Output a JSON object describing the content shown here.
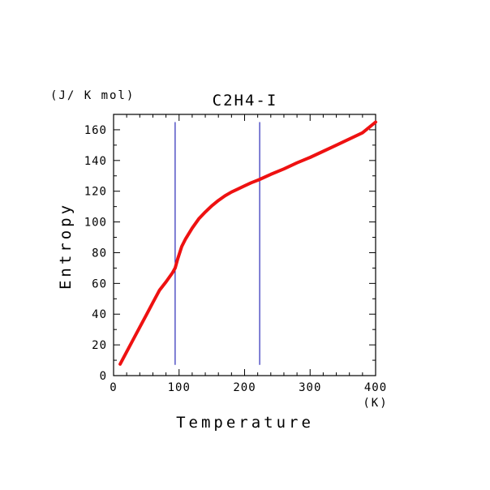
{
  "chart_data": {
    "type": "line",
    "title": "C2H4-I",
    "xlabel": "Temperature",
    "ylabel": "Entropy",
    "x_unit": "(K)",
    "y_unit": "(J/ K mol)",
    "xlim": [
      0,
      400
    ],
    "ylim": [
      0,
      170
    ],
    "x_ticks": [
      0,
      100,
      200,
      300,
      400
    ],
    "y_ticks": [
      0,
      20,
      40,
      60,
      80,
      100,
      120,
      140,
      160
    ],
    "grid": false,
    "series": [
      {
        "color": "#ee1111",
        "x": [
          10,
          20,
          30,
          40,
          50,
          60,
          70,
          80,
          90,
          94,
          98,
          104,
          110,
          120,
          130,
          140,
          150,
          160,
          170,
          180,
          190,
          200,
          210,
          222,
          240,
          260,
          280,
          300,
          320,
          340,
          360,
          380,
          400
        ],
        "y": [
          7.5,
          15.5,
          23.5,
          31.5,
          39.5,
          47.5,
          55.5,
          61,
          67,
          70,
          76,
          84,
          89,
          96,
          102,
          106.5,
          110.5,
          114,
          117,
          119.5,
          121.5,
          123.5,
          125.5,
          127.5,
          131,
          134.5,
          138.5,
          142,
          146,
          150,
          154,
          158,
          165
        ]
      }
    ],
    "vertical_lines": [
      {
        "x": 94,
        "y_range": [
          7,
          165
        ],
        "color": "#0000aa"
      },
      {
        "x": 223,
        "y_range": [
          7,
          165
        ],
        "color": "#0000aa"
      }
    ]
  }
}
